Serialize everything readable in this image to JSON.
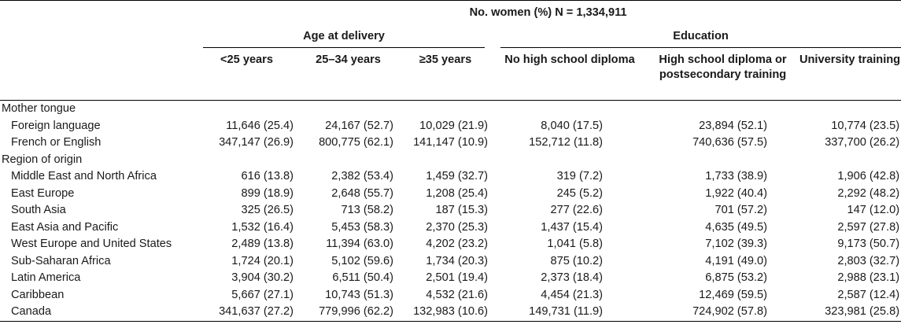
{
  "header": {
    "title": "No. women (%) N = 1,334,911",
    "group_age": "Age at delivery",
    "group_education": "Education",
    "columns": [
      "<25 years",
      "25–34 years",
      "≥35 years",
      "No high school diploma",
      "High school diploma or postsecondary training",
      "University training"
    ]
  },
  "sections": [
    {
      "label": "Mother tongue",
      "rows": [
        {
          "label": "Foreign language",
          "values": [
            "11,646 (25.4)",
            "24,167 (52.7)",
            "10,029 (21.9)",
            "8,040 (17.5)",
            "23,894 (52.1)",
            "10,774 (23.5)"
          ]
        },
        {
          "label": "French or English",
          "values": [
            "347,147 (26.9)",
            "800,775 (62.1)",
            "141,147 (10.9)",
            "152,712 (11.8)",
            "740,636 (57.5)",
            "337,700 (26.2)"
          ]
        }
      ]
    },
    {
      "label": "Region of origin",
      "rows": [
        {
          "label": "Middle East and North Africa",
          "values": [
            "616 (13.8)",
            "2,382 (53.4)",
            "1,459 (32.7)",
            "319 (7.2)",
            "1,733 (38.9)",
            "1,906 (42.8)"
          ]
        },
        {
          "label": "East Europe",
          "values": [
            "899 (18.9)",
            "2,648 (55.7)",
            "1,208 (25.4)",
            "245 (5.2)",
            "1,922 (40.4)",
            "2,292 (48.2)"
          ]
        },
        {
          "label": "South Asia",
          "values": [
            "325 (26.5)",
            "713 (58.2)",
            "187 (15.3)",
            "277 (22.6)",
            "701 (57.2)",
            "147 (12.0)"
          ]
        },
        {
          "label": "East Asia and Pacific",
          "values": [
            "1,532 (16.4)",
            "5,453 (58.3)",
            "2,370 (25.3)",
            "1,437 (15.4)",
            "4,635 (49.5)",
            "2,597 (27.8)"
          ]
        },
        {
          "label": "West Europe and United States",
          "values": [
            "2,489 (13.8)",
            "11,394 (63.0)",
            "4,202 (23.2)",
            "1,041 (5.8)",
            "7,102 (39.3)",
            "9,173 (50.7)"
          ]
        },
        {
          "label": "Sub-Saharan Africa",
          "values": [
            "1,724 (20.1)",
            "5,102 (59.6)",
            "1,734 (20.3)",
            "875 (10.2)",
            "4,191 (49.0)",
            "2,803 (32.7)"
          ]
        },
        {
          "label": "Latin America",
          "values": [
            "3,904 (30.2)",
            "6,511 (50.4)",
            "2,501 (19.4)",
            "2,373 (18.4)",
            "6,875 (53.2)",
            "2,988 (23.1)"
          ]
        },
        {
          "label": "Caribbean",
          "values": [
            "5,667 (27.1)",
            "10,743 (51.3)",
            "4,532 (21.6)",
            "4,454 (21.3)",
            "12,469 (59.5)",
            "2,587 (12.4)"
          ]
        },
        {
          "label": "Canada",
          "values": [
            "341,637 (27.2)",
            "779,996 (62.2)",
            "132,983 (10.6)",
            "149,731 (11.9)",
            "724,902 (57.8)",
            "323,981 (25.8)"
          ]
        }
      ]
    }
  ]
}
